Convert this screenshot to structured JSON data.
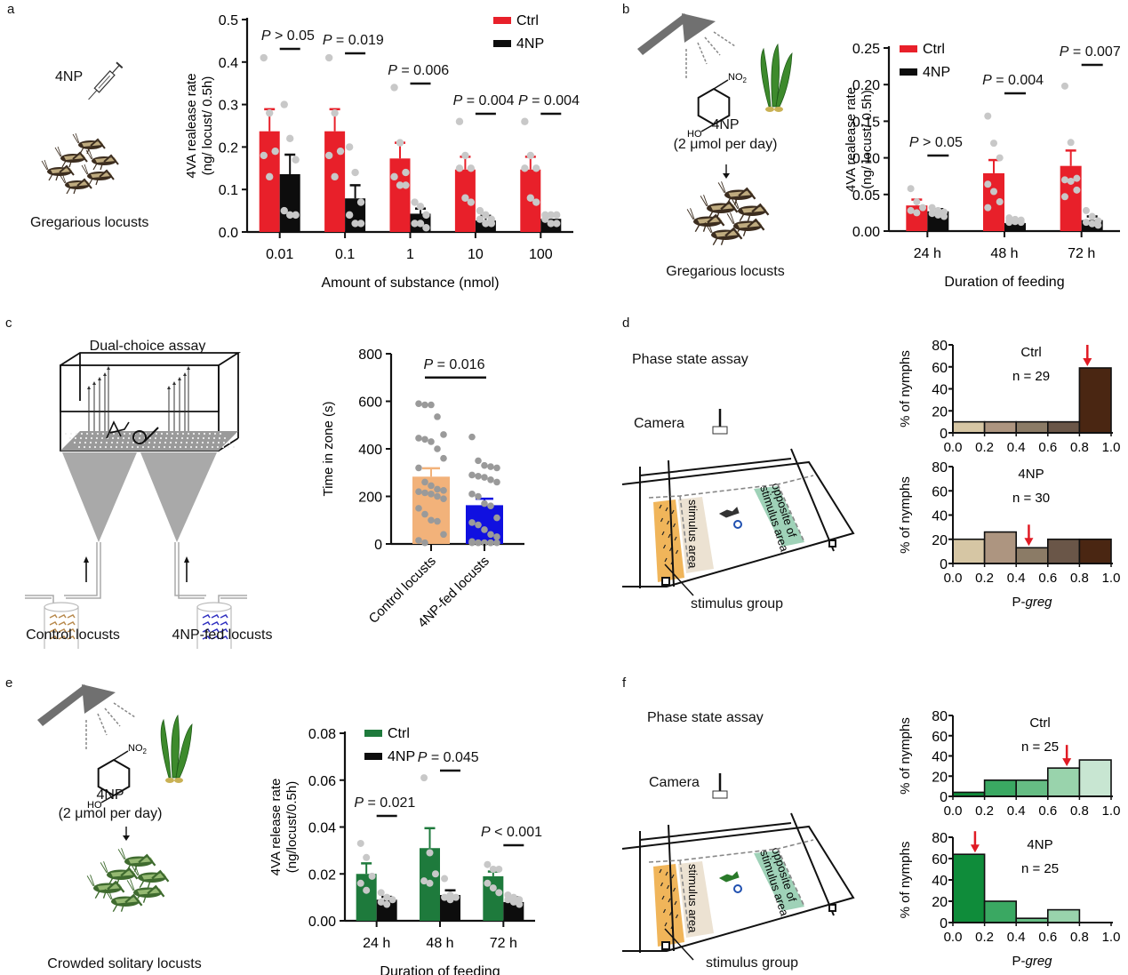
{
  "panels": {
    "a": {
      "letter": "a",
      "illustration": {
        "drug_label": "4NP",
        "caption": "Gregarious locusts"
      }
    },
    "b": {
      "letter": "b",
      "illustration": {
        "molecule_no2": "NO",
        "molecule_no2_sub": "2",
        "molecule_ho": "HO",
        "compound": "4NP",
        "dose": "(2 μmol per day)",
        "caption": "Gregarious locusts"
      }
    },
    "c": {
      "letter": "c",
      "illustration": {
        "title": "Dual-choice assay",
        "left_caption": "Control locusts",
        "right_caption": "4NP-fed locusts"
      }
    },
    "d": {
      "letter": "d",
      "illustration": {
        "title": "Phase state assay",
        "camera": "Camera",
        "stimulus_area": "stimulus area",
        "opposite_area_1": "opposite of",
        "opposite_area_2": "stimulus area",
        "stimulus_group": "stimulus group"
      }
    },
    "e": {
      "letter": "e",
      "illustration": {
        "molecule_no2": "NO",
        "molecule_no2_sub": "2",
        "molecule_ho": "HO",
        "compound": "4NP",
        "dose": "(2 μmol per day)",
        "caption": "Crowded solitary locusts"
      }
    },
    "f": {
      "letter": "f",
      "illustration": {
        "title": "Phase state assay",
        "camera": "Camera",
        "stimulus_area": "stimulus area",
        "opposite_area_1": "opposite of",
        "opposite_area_2": "stimulus area",
        "stimulus_group": "stimulus group"
      }
    }
  },
  "colors": {
    "ctrl_red": "#e8202a",
    "np_black": "#0d0d0d",
    "dot_gray": "#c8c8c8",
    "ctrl_green": "#1e7a3c",
    "control_orange": "#f2b27a",
    "fed_blue": "#1010e0",
    "arrow_red": "#e01b24",
    "zone_orange": "#f0b55a",
    "zone_beige": "#ece2d2",
    "zone_green": "#9fd2b8",
    "brown_bins": [
      "#d6c6a4",
      "#ad9580",
      "#8b7b66",
      "#6a5648",
      "#4a2612"
    ],
    "green_bins": [
      "#0f8c3a",
      "#3aa862",
      "#66bd84",
      "#99d3ac",
      "#c8e6d2"
    ]
  },
  "chart_data": [
    {
      "id": "a",
      "type": "bar",
      "title": "",
      "xlabel": "Amount of substance (nmol)",
      "ylabel": "4VA realease rate\n(ng/ locust/ 0.5h)",
      "ylim": [
        0,
        0.5
      ],
      "yticks": [
        "0.0",
        "0.1",
        "0.2",
        "0.3",
        "0.4",
        "0.5"
      ],
      "categories": [
        "0.01",
        "0.1",
        "1",
        "10",
        "100"
      ],
      "legend": {
        "position": "top-right",
        "entries": [
          "Ctrl",
          "4NP"
        ]
      },
      "series": [
        {
          "name": "Ctrl",
          "values": [
            0.237,
            0.237,
            0.173,
            0.147,
            0.147
          ],
          "errors": [
            0.052,
            0.052,
            0.037,
            0.03,
            0.03
          ],
          "points": [
            [
              0.41,
              0.28,
              0.19,
              0.18,
              0.13
            ],
            [
              0.41,
              0.28,
              0.19,
              0.18,
              0.13
            ],
            [
              0.34,
              0.21,
              0.14,
              0.13,
              0.11,
              0.11
            ],
            [
              0.26,
              0.18,
              0.15,
              0.15,
              0.08,
              0.07
            ],
            [
              0.26,
              0.18,
              0.15,
              0.15,
              0.08,
              0.07
            ]
          ]
        },
        {
          "name": "4NP",
          "values": [
            0.136,
            0.079,
            0.043,
            0.027,
            0.031
          ],
          "errors": [
            0.046,
            0.031,
            0.012,
            0.011,
            0.008
          ],
          "points": [
            [
              0.3,
              0.22,
              0.17,
              0.05,
              0.04,
              0.04
            ],
            [
              0.2,
              0.14,
              0.07,
              0.04,
              0.02,
              0.02
            ],
            [
              0.07,
              0.06,
              0.04,
              0.02,
              0.02,
              0.01
            ],
            [
              0.05,
              0.04,
              0.03,
              0.03,
              0.02,
              0.02
            ],
            [
              0.04,
              0.04,
              0.04,
              0.03,
              0.02,
              0.02
            ]
          ]
        }
      ],
      "annotations": [
        "P > 0.05",
        "P = 0.019",
        "P = 0.006",
        "P = 0.004",
        "P = 0.004"
      ]
    },
    {
      "id": "b",
      "type": "bar",
      "title": "",
      "xlabel": "Duration of feeding",
      "ylabel": "4VA realease rate\n(ng/ locust/ 0.5h)",
      "ylim": [
        0,
        0.25
      ],
      "yticks": [
        "0.00",
        "0.05",
        "0.10",
        "0.15",
        "0.20",
        "0.25"
      ],
      "categories": [
        "24 h",
        "48 h",
        "72 h"
      ],
      "legend": {
        "position": "top-left",
        "entries": [
          "Ctrl",
          "4NP"
        ]
      },
      "series": [
        {
          "name": "Ctrl",
          "values": [
            0.035,
            0.079,
            0.089
          ],
          "errors": [
            0.008,
            0.018,
            0.021
          ],
          "points": [
            [
              0.058,
              0.04,
              0.032,
              0.028,
              0.025
            ],
            [
              0.157,
              0.12,
              0.1,
              0.064,
              0.054,
              0.04,
              0.032
            ],
            [
              0.198,
              0.121,
              0.072,
              0.07,
              0.068,
              0.056,
              0.047
            ]
          ]
        },
        {
          "name": "4NP",
          "values": [
            0.027,
            0.011,
            0.015
          ],
          "errors": [
            0.003,
            0.002,
            0.005
          ],
          "points": [
            [
              0.032,
              0.028,
              0.026,
              0.024,
              0.022,
              0.02
            ],
            [
              0.018,
              0.016,
              0.015,
              0.014,
              0.013,
              0.012,
              0.012
            ],
            [
              0.028,
              0.02,
              0.014,
              0.012,
              0.01,
              0.008
            ]
          ]
        }
      ],
      "annotations": [
        "P > 0.05",
        "P = 0.004",
        "P = 0.007"
      ]
    },
    {
      "id": "c",
      "type": "bar",
      "title": "",
      "xlabel": "",
      "ylabel": "Time in zone (s)",
      "ylim": [
        0,
        800
      ],
      "yticks": [
        "0",
        "200",
        "400",
        "600",
        "800"
      ],
      "categories": [
        "Control locusts",
        "4NP-fed locusts"
      ],
      "values": [
        283,
        163
      ],
      "errors": [
        35,
        27
      ],
      "points": [
        [
          590,
          585,
          585,
          535,
          460,
          445,
          440,
          430,
          400,
          360,
          320,
          260,
          245,
          230,
          225,
          220,
          215,
          210,
          200,
          190,
          150,
          125,
          100,
          95,
          40,
          15,
          5
        ],
        [
          450,
          350,
          330,
          325,
          320,
          290,
          285,
          280,
          270,
          260,
          210,
          200,
          170,
          160,
          110,
          90,
          80,
          60,
          40,
          30,
          10,
          5,
          5,
          5,
          5,
          5,
          5,
          5,
          5
        ]
      ],
      "annotations": [
        "P = 0.016"
      ]
    },
    {
      "id": "d-ctrl",
      "type": "bar",
      "title": "Ctrl",
      "subtitle": "n = 29",
      "xlabel": "",
      "ylabel": "% of nymphs",
      "ylim": [
        0,
        80
      ],
      "yticks": [
        "0",
        "20",
        "40",
        "60",
        "80"
      ],
      "xticks": [
        "0.0",
        "0.2",
        "0.4",
        "0.6",
        "0.8",
        "1.0"
      ],
      "bins": [
        [
          0.0,
          0.2
        ],
        [
          0.2,
          0.4
        ],
        [
          0.4,
          0.6
        ],
        [
          0.6,
          0.8
        ],
        [
          0.8,
          1.0
        ]
      ],
      "values": [
        10,
        10,
        10,
        10,
        59
      ],
      "mean_arrow": 0.85,
      "palette": "brown"
    },
    {
      "id": "d-4np",
      "type": "bar",
      "title": "4NP",
      "subtitle": "n = 30",
      "xlabel": "P-greg",
      "ylabel": "% of nymphs",
      "ylim": [
        0,
        80
      ],
      "yticks": [
        "0",
        "20",
        "40",
        "60",
        "80"
      ],
      "xticks": [
        "0.0",
        "0.2",
        "0.4",
        "0.6",
        "0.8",
        "1.0"
      ],
      "bins": [
        [
          0.0,
          0.2
        ],
        [
          0.2,
          0.4
        ],
        [
          0.4,
          0.6
        ],
        [
          0.6,
          0.8
        ],
        [
          0.8,
          1.0
        ]
      ],
      "values": [
        20,
        26,
        13,
        20,
        20
      ],
      "mean_arrow": 0.48,
      "palette": "brown"
    },
    {
      "id": "e",
      "type": "bar",
      "title": "",
      "xlabel": "Duration of feeding",
      "ylabel": "4VA release rate\n(ng/locust/0.5h)",
      "ylim": [
        0,
        0.08
      ],
      "yticks": [
        "0.00",
        "0.02",
        "0.04",
        "0.06",
        "0.08"
      ],
      "categories": [
        "24 h",
        "48 h",
        "72 h"
      ],
      "legend": {
        "position": "top-left",
        "entries": [
          "Ctrl",
          "4NP"
        ]
      },
      "series": [
        {
          "name": "Ctrl",
          "values": [
            0.02,
            0.031,
            0.019
          ],
          "errors": [
            0.0045,
            0.0085,
            0.002
          ],
          "points": [
            [
              0.033,
              0.027,
              0.019,
              0.016,
              0.013
            ],
            [
              0.061,
              0.029,
              0.02,
              0.017,
              0.016
            ],
            [
              0.024,
              0.022,
              0.022,
              0.016,
              0.014,
              0.012
            ]
          ]
        },
        {
          "name": "4NP",
          "values": [
            0.009,
            0.011,
            0.008
          ],
          "errors": [
            0.0012,
            0.002,
            0.002
          ],
          "points": [
            [
              0.012,
              0.01,
              0.009,
              0.008,
              0.007
            ],
            [
              0.018,
              0.011,
              0.01,
              0.01,
              0.009
            ],
            [
              0.011,
              0.01,
              0.009,
              0.009,
              0.008,
              0.007
            ]
          ]
        }
      ],
      "annotations": [
        "P = 0.021",
        "P = 0.045",
        "P < 0.001"
      ]
    },
    {
      "id": "f-ctrl",
      "type": "bar",
      "title": "Ctrl",
      "subtitle": "n = 25",
      "xlabel": "",
      "ylabel": "% of nymphs",
      "ylim": [
        0,
        80
      ],
      "yticks": [
        "0",
        "20",
        "40",
        "60",
        "80"
      ],
      "xticks": [
        "0.0",
        "0.2",
        "0.4",
        "0.6",
        "0.8",
        "1.0"
      ],
      "bins": [
        [
          0.0,
          0.2
        ],
        [
          0.2,
          0.4
        ],
        [
          0.4,
          0.6
        ],
        [
          0.6,
          0.8
        ],
        [
          0.8,
          1.0
        ]
      ],
      "values": [
        4,
        16,
        16,
        28,
        36
      ],
      "mean_arrow": 0.72,
      "palette": "green"
    },
    {
      "id": "f-4np",
      "type": "bar",
      "title": "4NP",
      "subtitle": "n = 25",
      "xlabel": "P-greg",
      "ylabel": "% of nymphs",
      "ylim": [
        0,
        80
      ],
      "yticks": [
        "0",
        "20",
        "40",
        "60",
        "80"
      ],
      "xticks": [
        "0.0",
        "0.2",
        "0.4",
        "0.6",
        "0.8",
        "1.0"
      ],
      "bins": [
        [
          0.0,
          0.2
        ],
        [
          0.2,
          0.4
        ],
        [
          0.4,
          0.6
        ],
        [
          0.6,
          0.8
        ],
        [
          0.8,
          1.0
        ]
      ],
      "values": [
        64,
        20,
        4,
        12,
        0
      ],
      "mean_arrow": 0.14,
      "palette": "green"
    }
  ]
}
